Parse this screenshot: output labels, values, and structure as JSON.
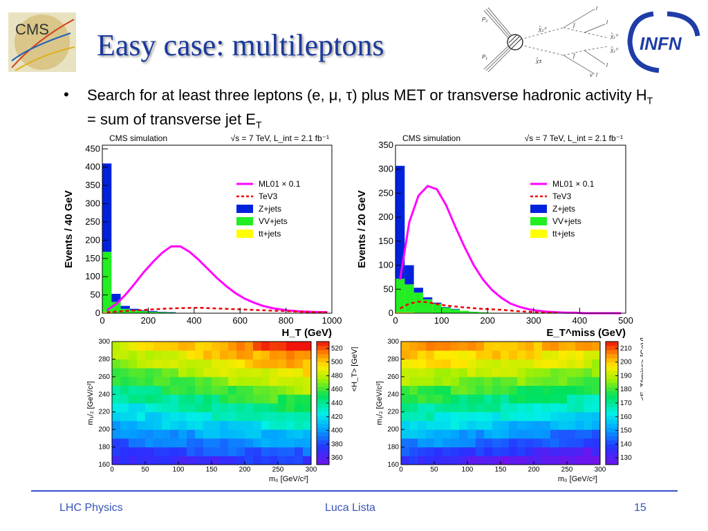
{
  "slide": {
    "title": "Easy case: multileptons",
    "bullet_pre": "Search for at least three leptons (e, μ, τ) plus MET or transverse hadronic activity H",
    "bullet_sub1": "T",
    "bullet_mid": " = sum of transverse jet E",
    "bullet_sub2": "T"
  },
  "logos": {
    "cms": "CMS",
    "infn": "INFN"
  },
  "diagram": {
    "labels": [
      "P₂",
      "P₁",
      "χ̃₂⁰",
      "χ̃±",
      "l̃",
      "l̃",
      "χ̃₁⁰",
      "χ̃₁⁰",
      "l",
      "l",
      "l",
      "l",
      "ν"
    ]
  },
  "footer": {
    "left": "LHC Physics",
    "center": "Luca Lista",
    "right": "15"
  },
  "colors": {
    "zjets": "#0022dd",
    "vvjets": "#22ee22",
    "ttjets": "#ffff00",
    "ml01": "#ff00ff",
    "tev3": "#ee0000",
    "title": "#1a3a9c"
  },
  "chart_data": [
    {
      "type": "bar",
      "panel": "HT distribution",
      "header_left": "CMS simulation",
      "header_right": "√s = 7 TeV,   L_int = 2.1 fb⁻¹",
      "xlabel": "H_T (GeV)",
      "ylabel": "Events / 40 GeV",
      "xlim": [
        0,
        1000
      ],
      "ylim": [
        0,
        460
      ],
      "xticks": [
        0,
        200,
        400,
        600,
        800,
        1000
      ],
      "yticks": [
        0,
        50,
        100,
        150,
        200,
        250,
        300,
        350,
        400,
        450
      ],
      "bin_width": 40,
      "stack": [
        {
          "name": "tt+jets",
          "values": [
            3,
            1,
            0,
            0,
            0,
            0,
            0,
            0,
            0,
            0,
            0,
            0,
            0,
            0,
            0,
            0,
            0,
            0,
            0,
            0,
            0,
            0,
            0,
            0,
            0
          ]
        },
        {
          "name": "VV+jets",
          "values": [
            165,
            30,
            12,
            8,
            6,
            4,
            3,
            2,
            1,
            1,
            1,
            0,
            0,
            0,
            0,
            0,
            0,
            0,
            0,
            0,
            0,
            0,
            0,
            0,
            0
          ]
        },
        {
          "name": "Z+jets",
          "values": [
            242,
            22,
            8,
            4,
            2,
            2,
            1,
            1,
            0,
            0,
            0,
            0,
            0,
            0,
            0,
            0,
            0,
            0,
            0,
            0,
            0,
            0,
            0,
            0,
            0
          ]
        }
      ],
      "lines": [
        {
          "name": "ML01 × 0.1",
          "style": "solid",
          "x": [
            0,
            40,
            80,
            120,
            160,
            200,
            240,
            280,
            320,
            360,
            400,
            440,
            480,
            520,
            560,
            600,
            640,
            680,
            720,
            760,
            800,
            840,
            880,
            920,
            960
          ],
          "y": [
            8,
            25,
            50,
            80,
            112,
            140,
            165,
            183,
            183,
            168,
            146,
            121,
            96,
            74,
            55,
            40,
            29,
            20,
            14,
            10,
            7,
            5,
            4,
            3,
            3
          ]
        },
        {
          "name": "TeV3",
          "style": "dashed",
          "x": [
            0,
            80,
            160,
            240,
            320,
            400,
            480,
            560,
            640,
            720,
            800,
            880,
            960
          ],
          "y": [
            3,
            6,
            9,
            12,
            14,
            15,
            13,
            11,
            9,
            7,
            5,
            3,
            2
          ]
        }
      ],
      "legend": [
        "ML01 × 0.1",
        "TeV3",
        "Z+jets",
        "VV+jets",
        "tt+jets"
      ],
      "legend_position": "top-right"
    },
    {
      "type": "bar",
      "panel": "MET distribution",
      "header_left": "CMS simulation",
      "header_right": "√s = 7 TeV,   L_int = 2.1 fb⁻¹",
      "xlabel": "E_T^miss (GeV)",
      "ylabel": "Events / 20 GeV",
      "xlim": [
        0,
        500
      ],
      "ylim": [
        0,
        350
      ],
      "xticks": [
        0,
        100,
        200,
        300,
        400,
        500
      ],
      "yticks": [
        0,
        50,
        100,
        150,
        200,
        250,
        300,
        350
      ],
      "bin_width": 20,
      "stack": [
        {
          "name": "tt+jets",
          "values": [
            2,
            2,
            1,
            1,
            0,
            0,
            0,
            0,
            0,
            0,
            0,
            0,
            0,
            0,
            0,
            0,
            0,
            0,
            0,
            0,
            0,
            0,
            0,
            0,
            0
          ]
        },
        {
          "name": "VV+jets",
          "values": [
            70,
            58,
            42,
            28,
            20,
            12,
            8,
            5,
            3,
            2,
            1,
            0,
            0,
            0,
            0,
            0,
            0,
            0,
            0,
            0,
            0,
            0,
            0,
            0,
            0
          ]
        },
        {
          "name": "Z+jets",
          "values": [
            235,
            40,
            10,
            4,
            2,
            1,
            1,
            0,
            0,
            0,
            0,
            0,
            0,
            0,
            0,
            0,
            0,
            0,
            0,
            0,
            0,
            0,
            0,
            0,
            0
          ]
        }
      ],
      "lines": [
        {
          "name": "ML01 × 0.1",
          "style": "solid",
          "x": [
            0,
            20,
            40,
            60,
            80,
            100,
            120,
            140,
            160,
            180,
            200,
            220,
            240,
            260,
            280,
            300,
            320,
            340,
            360,
            380,
            400,
            420,
            440,
            460,
            480
          ],
          "y": [
            70,
            190,
            245,
            265,
            258,
            225,
            180,
            138,
            100,
            70,
            48,
            32,
            20,
            13,
            8,
            5,
            3,
            2,
            1,
            1,
            0,
            0,
            0,
            0,
            0
          ]
        },
        {
          "name": "TeV3",
          "style": "dashed",
          "x": [
            0,
            20,
            40,
            60,
            80,
            100,
            140,
            180,
            220,
            260,
            300,
            340
          ],
          "y": [
            10,
            20,
            24,
            23,
            19,
            16,
            12,
            9,
            7,
            4,
            2,
            1
          ]
        }
      ],
      "legend": [
        "ML01 × 0.1",
        "TeV3",
        "Z+jets",
        "VV+jets",
        "tt+jets"
      ],
      "legend_position": "top-right"
    },
    {
      "type": "heatmap",
      "panel": "mean HT map",
      "xlabel": "m₀ [GeV/c²]",
      "ylabel": "m₁/₂ [GeV/c²]",
      "zlabel": "<H_T> [GeV]",
      "xlim": [
        0,
        300
      ],
      "ylim": [
        160,
        300
      ],
      "xticks": [
        0,
        50,
        100,
        150,
        200,
        250,
        300
      ],
      "yticks": [
        160,
        180,
        200,
        220,
        240,
        260,
        280,
        300
      ],
      "zlim": [
        350,
        530
      ],
      "zticks": [
        360,
        380,
        400,
        420,
        440,
        460,
        480,
        500,
        520
      ],
      "description": "values rise with m1/2 and are highest at large m0; low (~360) at bottom-left"
    },
    {
      "type": "heatmap",
      "panel": "mean MET map",
      "xlabel": "m₀ [GeV/c²]",
      "ylabel": "m₁/₂ [GeV/c²]",
      "zlabel": "<E_T^miss> [GeV]",
      "xlim": [
        0,
        300
      ],
      "ylim": [
        160,
        300
      ],
      "xticks": [
        0,
        50,
        100,
        150,
        200,
        250,
        300
      ],
      "yticks": [
        160,
        180,
        200,
        220,
        240,
        260,
        280,
        300
      ],
      "zlim": [
        125,
        215
      ],
      "zticks": [
        130,
        140,
        150,
        160,
        170,
        180,
        190,
        200,
        210
      ],
      "description": "values rise with m1/2; lowest at bottom-right"
    }
  ]
}
